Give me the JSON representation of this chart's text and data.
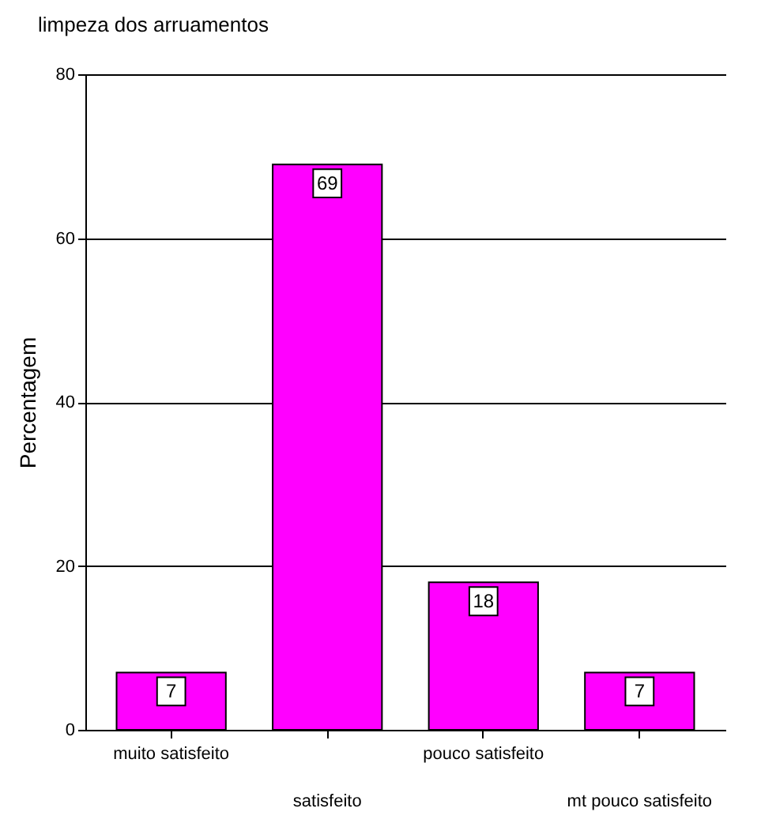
{
  "chart_data": {
    "type": "bar",
    "title": "limpeza dos arruamentos",
    "ylabel": "Percentagem",
    "categories": [
      "muito satisfeito",
      "satisfeito",
      "pouco satisfeito",
      "mt pouco satisfeito"
    ],
    "values": [
      7,
      69,
      18,
      7
    ],
    "color": "#ff00ff",
    "ylim": [
      0,
      80
    ],
    "yticks": [
      0,
      20,
      40,
      60,
      80
    ],
    "grid": "y",
    "data_labels": true
  }
}
